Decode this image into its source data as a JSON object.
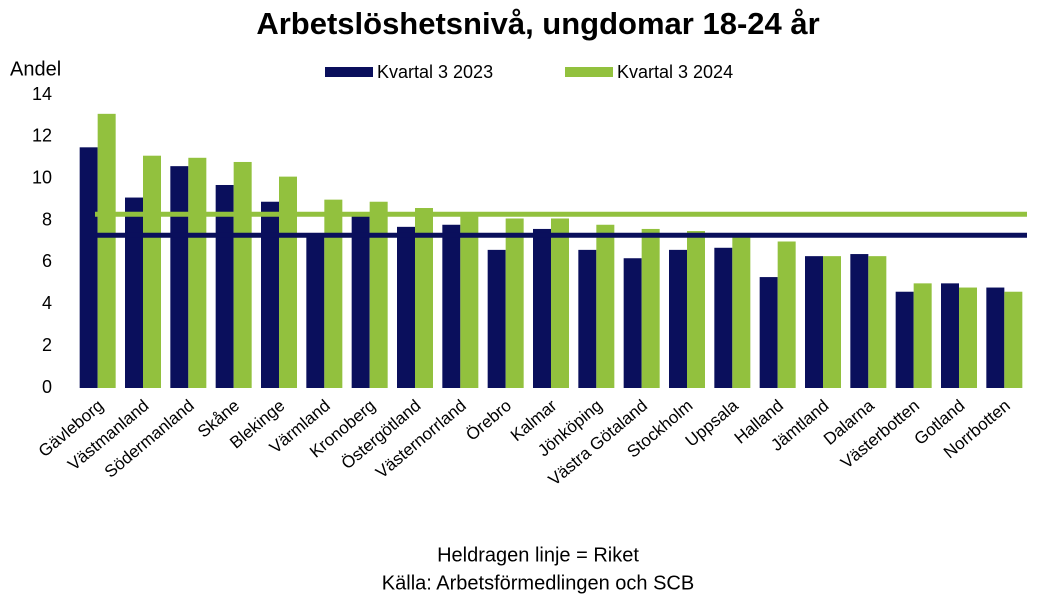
{
  "chart_data": {
    "type": "bar",
    "title": "Arbetslöshetsnivå, ungdomar 18-24 år",
    "y_label": "Andel",
    "notes": [
      "Heldragen linje = Riket",
      "Källa: Arbetsförmedlingen och SCB"
    ],
    "categories": [
      "Gävleborg",
      "Västmanland",
      "Södermanland",
      "Skåne",
      "Blekinge",
      "Värmland",
      "Kronoberg",
      "Östergötland",
      "Västernorrland",
      "Örebro",
      "Kalmar",
      "Jönköping",
      "Västra Götaland",
      "Stockholm",
      "Uppsala",
      "Halland",
      "Jämtland",
      "Dalarna",
      "Västerbotten",
      "Gotland",
      "Norrbotten"
    ],
    "series": [
      {
        "name": "Kvartal 3 2023",
        "color": "#0a0f5c",
        "reference": 7.3,
        "values": [
          11.5,
          9.1,
          10.6,
          9.7,
          8.9,
          7.3,
          8.4,
          7.7,
          7.8,
          6.6,
          7.6,
          6.6,
          6.2,
          6.6,
          6.7,
          5.3,
          6.3,
          6.4,
          4.6,
          5.0,
          4.8
        ]
      },
      {
        "name": "Kvartal 3 2024",
        "color": "#92c13e",
        "reference": 8.3,
        "values": [
          13.1,
          11.1,
          11.0,
          10.8,
          10.1,
          9.0,
          8.9,
          8.6,
          8.4,
          8.1,
          8.1,
          7.8,
          7.6,
          7.5,
          7.3,
          7.0,
          6.3,
          6.3,
          5.0,
          4.8,
          4.6
        ]
      }
    ],
    "ylim": [
      0,
      14
    ],
    "yticks": [
      0,
      2,
      4,
      6,
      8,
      10,
      12,
      14
    ],
    "grid": false,
    "legend": "top"
  }
}
